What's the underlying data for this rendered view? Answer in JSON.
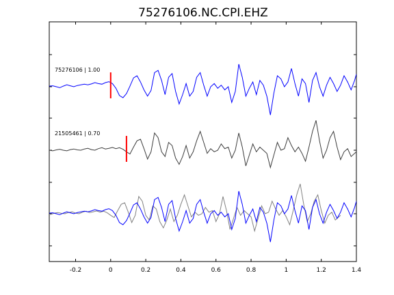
{
  "chart_data": {
    "type": "line",
    "title": "75276106.NC.CPI.EHZ",
    "xlabel": "",
    "ylabel": "",
    "xlim": [
      -0.35,
      1.4
    ],
    "x_ticks": [
      -0.2,
      0,
      0.2,
      0.4,
      0.6,
      0.8,
      1,
      1.2,
      1.4
    ],
    "x_tick_labels": [
      "-0.2",
      "0",
      "0.2",
      "0.4",
      "0.6",
      "0.8",
      "1",
      "1.2",
      "1.4"
    ],
    "grid": false,
    "legend": "none",
    "panels": [
      {
        "label": "75276106 | 1.00",
        "pick_time": 0.0,
        "series": [
          {
            "color": "#0000ff",
            "points": [
              [
                -0.35,
                0.02
              ],
              [
                -0.33,
                0.03
              ],
              [
                -0.31,
                0.0
              ],
              [
                -0.29,
                -0.03
              ],
              [
                -0.27,
                0.02
              ],
              [
                -0.25,
                0.06
              ],
              [
                -0.23,
                0.03
              ],
              [
                -0.21,
                0.0
              ],
              [
                -0.19,
                0.04
              ],
              [
                -0.17,
                0.06
              ],
              [
                -0.15,
                0.08
              ],
              [
                -0.13,
                0.06
              ],
              [
                -0.11,
                0.09
              ],
              [
                -0.09,
                0.13
              ],
              [
                -0.07,
                0.1
              ],
              [
                -0.05,
                0.08
              ],
              [
                -0.03,
                0.13
              ],
              [
                -0.01,
                0.16
              ],
              [
                0.01,
                0.1
              ],
              [
                0.03,
                -0.05
              ],
              [
                0.05,
                -0.28
              ],
              [
                0.07,
                -0.35
              ],
              [
                0.09,
                -0.22
              ],
              [
                0.11,
                0.02
              ],
              [
                0.13,
                0.28
              ],
              [
                0.15,
                0.35
              ],
              [
                0.17,
                0.15
              ],
              [
                0.19,
                -0.1
              ],
              [
                0.21,
                -0.3
              ],
              [
                0.23,
                -0.12
              ],
              [
                0.25,
                0.45
              ],
              [
                0.27,
                0.52
              ],
              [
                0.29,
                0.2
              ],
              [
                0.31,
                -0.25
              ],
              [
                0.33,
                0.3
              ],
              [
                0.35,
                0.42
              ],
              [
                0.37,
                -0.15
              ],
              [
                0.39,
                -0.55
              ],
              [
                0.41,
                -0.25
              ],
              [
                0.43,
                0.1
              ],
              [
                0.45,
                -0.3
              ],
              [
                0.47,
                -0.15
              ],
              [
                0.49,
                0.3
              ],
              [
                0.51,
                0.45
              ],
              [
                0.53,
                0.05
              ],
              [
                0.55,
                -0.3
              ],
              [
                0.57,
                0.0
              ],
              [
                0.59,
                0.1
              ],
              [
                0.61,
                -0.05
              ],
              [
                0.63,
                0.05
              ],
              [
                0.65,
                -0.1
              ],
              [
                0.67,
                0.0
              ],
              [
                0.69,
                -0.5
              ],
              [
                0.71,
                -0.15
              ],
              [
                0.73,
                0.72
              ],
              [
                0.75,
                0.3
              ],
              [
                0.77,
                -0.3
              ],
              [
                0.79,
                -0.05
              ],
              [
                0.81,
                0.15
              ],
              [
                0.83,
                -0.25
              ],
              [
                0.85,
                0.2
              ],
              [
                0.87,
                0.05
              ],
              [
                0.89,
                -0.3
              ],
              [
                0.91,
                -0.9
              ],
              [
                0.93,
                -0.2
              ],
              [
                0.95,
                0.35
              ],
              [
                0.97,
                0.25
              ],
              [
                0.99,
                0.0
              ],
              [
                1.01,
                0.15
              ],
              [
                1.03,
                0.58
              ],
              [
                1.05,
                0.1
              ],
              [
                1.07,
                -0.3
              ],
              [
                1.09,
                0.25
              ],
              [
                1.11,
                0.1
              ],
              [
                1.13,
                -0.5
              ],
              [
                1.15,
                0.2
              ],
              [
                1.17,
                0.45
              ],
              [
                1.19,
                0.0
              ],
              [
                1.21,
                -0.3
              ],
              [
                1.23,
                0.05
              ],
              [
                1.25,
                0.3
              ],
              [
                1.27,
                0.1
              ],
              [
                1.29,
                -0.15
              ],
              [
                1.31,
                0.05
              ],
              [
                1.33,
                0.35
              ],
              [
                1.35,
                0.15
              ],
              [
                1.37,
                -0.1
              ],
              [
                1.39,
                0.2
              ],
              [
                1.4,
                0.4
              ]
            ]
          }
        ]
      },
      {
        "label": "21505461 | 0.70",
        "pick_time": 0.09,
        "series": [
          {
            "color": "#3c3c3c",
            "points": [
              [
                -0.35,
                0.0
              ],
              [
                -0.33,
                -0.02
              ],
              [
                -0.31,
                0.01
              ],
              [
                -0.29,
                0.03
              ],
              [
                -0.27,
                0.0
              ],
              [
                -0.25,
                -0.02
              ],
              [
                -0.23,
                0.02
              ],
              [
                -0.21,
                0.04
              ],
              [
                -0.19,
                0.01
              ],
              [
                -0.17,
                0.0
              ],
              [
                -0.15,
                0.04
              ],
              [
                -0.13,
                0.06
              ],
              [
                -0.11,
                0.02
              ],
              [
                -0.09,
                0.0
              ],
              [
                -0.07,
                0.05
              ],
              [
                -0.05,
                0.08
              ],
              [
                -0.03,
                0.04
              ],
              [
                -0.01,
                0.06
              ],
              [
                0.01,
                0.09
              ],
              [
                0.03,
                0.05
              ],
              [
                0.05,
                0.08
              ],
              [
                0.07,
                0.03
              ],
              [
                0.09,
                -0.05
              ],
              [
                0.11,
                -0.12
              ],
              [
                0.13,
                0.1
              ],
              [
                0.15,
                0.3
              ],
              [
                0.17,
                0.35
              ],
              [
                0.19,
                0.05
              ],
              [
                0.21,
                -0.28
              ],
              [
                0.23,
                -0.05
              ],
              [
                0.25,
                0.55
              ],
              [
                0.27,
                0.4
              ],
              [
                0.29,
                -0.05
              ],
              [
                0.31,
                -0.2
              ],
              [
                0.33,
                0.25
              ],
              [
                0.35,
                0.15
              ],
              [
                0.37,
                -0.25
              ],
              [
                0.39,
                -0.45
              ],
              [
                0.41,
                -0.2
              ],
              [
                0.43,
                0.15
              ],
              [
                0.45,
                -0.25
              ],
              [
                0.47,
                -0.05
              ],
              [
                0.49,
                0.3
              ],
              [
                0.51,
                0.6
              ],
              [
                0.53,
                0.25
              ],
              [
                0.55,
                -0.1
              ],
              [
                0.57,
                0.05
              ],
              [
                0.59,
                -0.05
              ],
              [
                0.61,
                0.0
              ],
              [
                0.63,
                0.2
              ],
              [
                0.65,
                0.05
              ],
              [
                0.67,
                0.1
              ],
              [
                0.69,
                -0.25
              ],
              [
                0.71,
                0.0
              ],
              [
                0.73,
                0.55
              ],
              [
                0.75,
                0.1
              ],
              [
                0.77,
                -0.5
              ],
              [
                0.79,
                -0.15
              ],
              [
                0.81,
                0.2
              ],
              [
                0.83,
                -0.05
              ],
              [
                0.85,
                0.1
              ],
              [
                0.87,
                0.0
              ],
              [
                0.89,
                -0.1
              ],
              [
                0.91,
                -0.55
              ],
              [
                0.93,
                -0.15
              ],
              [
                0.95,
                0.25
              ],
              [
                0.97,
                0.0
              ],
              [
                0.99,
                0.05
              ],
              [
                1.01,
                0.4
              ],
              [
                1.03,
                0.15
              ],
              [
                1.05,
                -0.05
              ],
              [
                1.07,
                0.1
              ],
              [
                1.09,
                -0.1
              ],
              [
                1.11,
                -0.35
              ],
              [
                1.13,
                0.1
              ],
              [
                1.15,
                0.6
              ],
              [
                1.17,
                0.95
              ],
              [
                1.19,
                0.3
              ],
              [
                1.21,
                -0.25
              ],
              [
                1.23,
                0.0
              ],
              [
                1.25,
                0.4
              ],
              [
                1.27,
                0.6
              ],
              [
                1.29,
                0.1
              ],
              [
                1.31,
                -0.3
              ],
              [
                1.33,
                -0.05
              ],
              [
                1.35,
                0.05
              ],
              [
                1.37,
                -0.2
              ],
              [
                1.39,
                -0.1
              ],
              [
                1.4,
                -0.05
              ]
            ]
          }
        ]
      },
      {
        "label": "",
        "overlay": true,
        "series": [
          {
            "color": "#0000ff",
            "source_panel": 0,
            "shift": 0.0
          },
          {
            "color": "#808080",
            "source_panel": 1,
            "shift": -0.09
          }
        ]
      }
    ]
  }
}
